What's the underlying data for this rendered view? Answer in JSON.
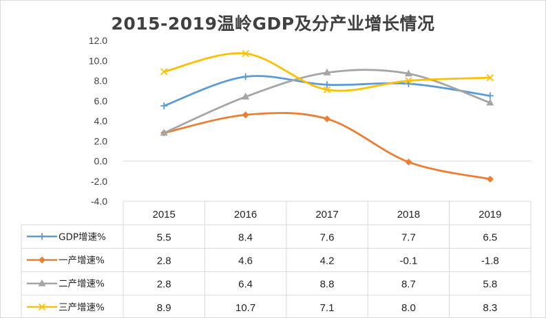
{
  "chart_data": {
    "type": "line",
    "title": "2015-2019温岭GDP及分产业增长情况",
    "categories": [
      "2015",
      "2016",
      "2017",
      "2018",
      "2019"
    ],
    "ylim": [
      -4.0,
      12.0
    ],
    "yticks": [
      "12.0",
      "10.0",
      "8.0",
      "6.0",
      "4.0",
      "2.0",
      "0.0",
      "-2.0",
      "-4.0"
    ],
    "ytick_values": [
      12,
      10,
      8,
      6,
      4,
      2,
      0,
      -2,
      -4
    ],
    "grid": "none",
    "legend_position": "data-table",
    "series": [
      {
        "name": "GDP增速%",
        "color": "#5b9bd5",
        "marker": "plus",
        "values": [
          5.5,
          8.4,
          7.6,
          7.7,
          6.5
        ],
        "labels": [
          "5.5",
          "8.4",
          "7.6",
          "7.7",
          "6.5"
        ]
      },
      {
        "name": "一产增速%",
        "color": "#ed7d31",
        "marker": "diamond",
        "values": [
          2.8,
          4.6,
          4.2,
          -0.1,
          -1.8
        ],
        "labels": [
          "2.8",
          "4.6",
          "4.2",
          "-0.1",
          "-1.8"
        ]
      },
      {
        "name": "二产增速%",
        "color": "#a5a5a5",
        "marker": "triangle",
        "values": [
          2.8,
          6.4,
          8.8,
          8.7,
          5.8
        ],
        "labels": [
          "2.8",
          "6.4",
          "8.8",
          "8.7",
          "5.8"
        ]
      },
      {
        "name": "三产增速%",
        "color": "#ffc000",
        "marker": "x",
        "values": [
          8.9,
          10.7,
          7.1,
          8.0,
          8.3
        ],
        "labels": [
          "8.9",
          "10.7",
          "7.1",
          "8.0",
          "8.3"
        ]
      }
    ]
  }
}
